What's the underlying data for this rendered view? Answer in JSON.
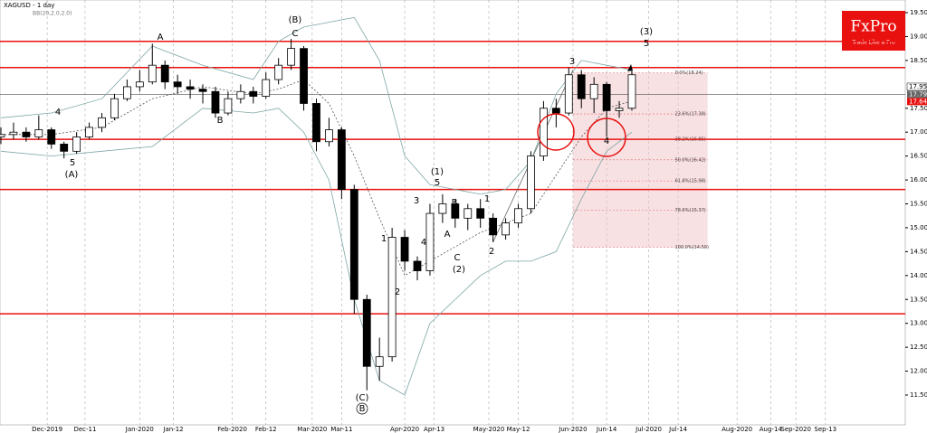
{
  "chart_data": {
    "type": "candlestick",
    "title": "XAGUSD - 1 day",
    "subtitle": "BB(20,2.0,2.0)",
    "logo": {
      "brand": "FxPro",
      "tagline": "Trade Like a Pro"
    },
    "x": [
      0,
      3,
      6,
      9,
      12,
      15,
      18,
      21,
      24,
      27,
      30,
      33,
      36,
      39,
      42,
      45,
      48,
      51,
      54,
      57,
      60,
      63,
      66,
      69,
      72,
      75,
      78,
      81,
      84,
      87,
      90,
      93,
      96,
      99,
      102,
      105,
      108,
      111,
      114,
      117,
      120,
      123,
      126,
      129,
      132,
      135,
      138,
      141,
      144,
      147,
      150
    ],
    "open": [
      16.9,
      16.95,
      17.0,
      16.9,
      17.05,
      16.75,
      16.6,
      16.9,
      17.1,
      17.3,
      17.7,
      17.95,
      18.05,
      18.4,
      18.05,
      17.95,
      17.9,
      17.85,
      17.4,
      17.7,
      17.85,
      17.75,
      18.1,
      18.4,
      18.75,
      17.6,
      16.8,
      17.05,
      15.8,
      13.5,
      12.1,
      12.3,
      14.8,
      14.3,
      14.1,
      15.3,
      15.5,
      15.2,
      15.4,
      15.2,
      14.85,
      15.1,
      15.4,
      16.5,
      17.5,
      17.4,
      18.2,
      17.7,
      18.0,
      17.45,
      17.5
    ],
    "high": [
      17.1,
      17.2,
      17.1,
      17.35,
      17.1,
      16.8,
      17.0,
      17.2,
      17.4,
      17.8,
      18.1,
      18.3,
      18.85,
      18.5,
      18.2,
      18.1,
      18.0,
      17.95,
      17.85,
      18.0,
      17.95,
      18.25,
      18.55,
      18.95,
      18.8,
      17.7,
      17.3,
      17.1,
      15.9,
      13.6,
      12.7,
      15.0,
      14.95,
      14.4,
      15.5,
      15.7,
      15.6,
      15.5,
      15.6,
      15.3,
      15.2,
      15.5,
      16.6,
      17.65,
      17.7,
      18.35,
      18.3,
      18.15,
      18.05,
      17.65,
      18.3
    ],
    "low": [
      16.75,
      16.85,
      16.8,
      16.85,
      16.65,
      16.45,
      16.55,
      16.85,
      17.0,
      17.25,
      17.65,
      17.85,
      18.0,
      17.9,
      17.8,
      17.7,
      17.6,
      17.3,
      17.35,
      17.6,
      17.6,
      17.7,
      18.0,
      18.3,
      17.45,
      16.6,
      16.7,
      15.6,
      13.2,
      11.6,
      11.8,
      12.2,
      14.1,
      13.9,
      14.0,
      15.1,
      15.0,
      14.95,
      15.0,
      14.7,
      14.75,
      15.0,
      15.3,
      16.4,
      17.1,
      17.35,
      17.5,
      17.4,
      16.9,
      17.3,
      17.45
    ],
    "close": [
      16.95,
      17.0,
      16.9,
      17.05,
      16.75,
      16.6,
      16.9,
      17.1,
      17.3,
      17.7,
      17.95,
      18.05,
      18.4,
      18.05,
      17.95,
      17.9,
      17.85,
      17.4,
      17.7,
      17.85,
      17.75,
      18.1,
      18.4,
      18.75,
      17.6,
      16.8,
      17.05,
      15.8,
      13.5,
      12.1,
      12.3,
      14.8,
      14.3,
      14.1,
      15.3,
      15.5,
      15.2,
      15.4,
      15.2,
      14.85,
      15.1,
      15.4,
      16.5,
      17.5,
      17.4,
      18.2,
      17.7,
      18.0,
      17.45,
      17.5,
      18.2
    ],
    "bands": {
      "x": [
        0,
        12,
        24,
        36,
        48,
        60,
        66,
        72,
        78,
        84,
        90,
        96,
        102,
        114,
        120,
        126,
        132,
        138,
        144,
        150
      ],
      "upper": [
        17.3,
        17.4,
        17.7,
        18.8,
        18.4,
        18.1,
        18.9,
        19.2,
        19.3,
        19.4,
        18.5,
        16.5,
        15.9,
        15.7,
        15.8,
        16.4,
        17.8,
        18.5,
        18.4,
        18.3
      ],
      "middle": [
        16.95,
        16.95,
        17.1,
        17.7,
        17.95,
        17.8,
        17.9,
        18.1,
        17.6,
        16.5,
        15.2,
        14.0,
        14.3,
        14.9,
        15.1,
        15.3,
        16.1,
        16.9,
        17.5,
        17.65
      ],
      "lower": [
        16.6,
        16.5,
        16.6,
        16.7,
        17.5,
        17.4,
        17.5,
        17.0,
        16.0,
        13.5,
        11.8,
        11.5,
        13.0,
        14.0,
        14.3,
        14.3,
        14.5,
        15.6,
        16.6,
        17.0
      ]
    },
    "levels": [
      18.9,
      18.35,
      16.85,
      15.8,
      13.2
    ],
    "current": 17.79,
    "fib": {
      "x": [
        136,
        168
      ],
      "levels": [
        18.24,
        17.38,
        16.85,
        16.42,
        15.98,
        15.37,
        14.59
      ],
      "labels": [
        "0.0%(18.24)",
        "23.6%(17.38)",
        "38.2%(16.85)",
        "50.0%(16.42)",
        "61.8%(15.98)",
        "78.6%(15.37)",
        "100.0%(14.59)"
      ]
    },
    "price_labels": [
      {
        "value": 17.95,
        "label": "17.95"
      },
      {
        "value": 17.79,
        "label": "17.79"
      },
      {
        "value": 17.64,
        "label": "17.64"
      }
    ],
    "annotations": [
      "4",
      "5",
      "(A)",
      "A",
      "B",
      "(B)",
      "C",
      "(C)",
      "B",
      "1",
      "2",
      "3",
      "4",
      "(1)",
      "5",
      "B",
      "A",
      "C",
      "(2)",
      "1",
      "2",
      "3",
      "4",
      "(3)",
      "5"
    ],
    "xlim": [
      0,
      215
    ],
    "ylim": [
      11.3,
      19.7
    ],
    "xticks": [
      {
        "value": 11,
        "label": "Dec-2019"
      },
      {
        "value": 20,
        "label": "Dec-11"
      },
      {
        "value": 33,
        "label": "Jan-2020"
      },
      {
        "value": 41,
        "label": "Jan-12"
      },
      {
        "value": 55,
        "label": "Feb-2020"
      },
      {
        "value": 63,
        "label": "Feb-12"
      },
      {
        "value": 74,
        "label": "Mar-2020"
      },
      {
        "value": 81,
        "label": "Mar-11"
      },
      {
        "value": 96,
        "label": "Apr-2020"
      },
      {
        "value": 103,
        "label": "Apr-13"
      },
      {
        "value": 116,
        "label": "May-2020"
      },
      {
        "value": 123,
        "label": "May-12"
      },
      {
        "value": 136,
        "label": "Jun-2020"
      },
      {
        "value": 144,
        "label": "Jun-14"
      },
      {
        "value": 154,
        "label": "Jul-2020"
      },
      {
        "value": 161,
        "label": "Jul-14"
      },
      {
        "value": 175,
        "label": "Aug-2020"
      },
      {
        "value": 183,
        "label": "Aug-14"
      },
      {
        "value": 189,
        "label": "Sep-2020"
      },
      {
        "value": 196,
        "label": "Sep-13"
      }
    ],
    "yticks": [
      {
        "value": 19.5,
        "label": "19.50"
      },
      {
        "value": 19,
        "label": "19.00"
      },
      {
        "value": 18.5,
        "label": "18.50"
      },
      {
        "value": 17.5,
        "label": "17.50"
      },
      {
        "value": 17,
        "label": "17.00"
      },
      {
        "value": 16.5,
        "label": "16.50"
      },
      {
        "value": 16,
        "label": "16.00"
      },
      {
        "value": 15.5,
        "label": "15.50"
      },
      {
        "value": 15,
        "label": "15.00"
      },
      {
        "value": 14.5,
        "label": "14.50"
      },
      {
        "value": 14,
        "label": "14.00"
      },
      {
        "value": 13.5,
        "label": "13.50"
      },
      {
        "value": 13,
        "label": "13.00"
      },
      {
        "value": 12.5,
        "label": "12.50"
      },
      {
        "value": 12,
        "label": "12.00"
      },
      {
        "value": 11.5,
        "label": "11.50"
      }
    ],
    "colors": {
      "level": "#e8110f",
      "band": "#7fa5a5",
      "candle": "#000000",
      "fib": "#f2c4c8"
    }
  }
}
